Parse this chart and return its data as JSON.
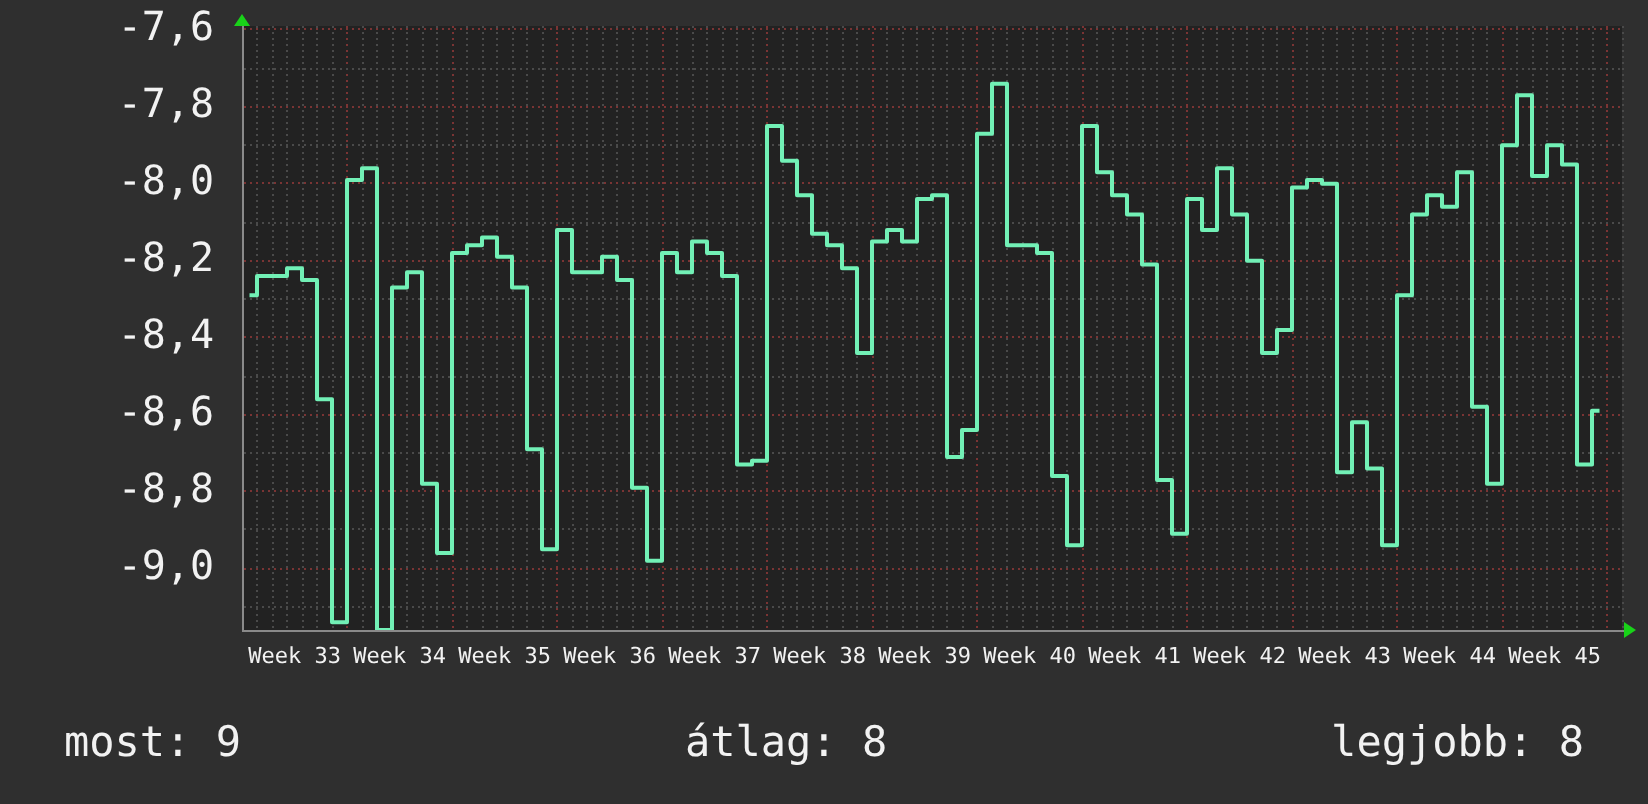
{
  "chart_data": {
    "type": "step",
    "annotations": [
      "most: 9",
      "átlag: 8",
      "legjobb: 8"
    ],
    "categories": [
      null,
      null,
      null,
      "Week 33",
      null,
      null,
      null,
      null,
      null,
      null,
      "Week 34",
      null,
      null,
      null,
      null,
      null,
      null,
      "Week 35",
      null,
      null,
      null,
      null,
      null,
      null,
      "Week 36",
      null,
      null,
      null,
      null,
      null,
      null,
      "Week 37",
      null,
      null,
      null,
      null,
      null,
      null,
      "Week 38",
      null,
      null,
      null,
      null,
      null,
      null,
      "Week 39",
      null,
      null,
      null,
      null,
      null,
      null,
      "Week 40",
      null,
      null,
      null,
      null,
      null,
      null,
      "Week 41",
      null,
      null,
      null,
      null,
      null,
      null,
      "Week 42",
      null,
      null,
      null,
      null,
      null,
      null,
      "Week 43",
      null,
      null,
      null,
      null,
      null,
      null,
      "Week 44",
      null,
      null,
      null,
      null,
      null,
      null,
      "Week 45",
      null,
      null,
      null,
      null
    ],
    "series": [
      {
        "color": "#72f0b6",
        "values": [
          -8.29,
          -8.24,
          -8.24,
          -8.22,
          -8.25,
          -8.56,
          -9.14,
          -7.99,
          -7.96,
          -9.16,
          -8.27,
          -8.23,
          -8.78,
          -8.96,
          -8.18,
          -8.16,
          -8.14,
          -8.19,
          -8.27,
          -8.69,
          -8.95,
          -8.12,
          -8.23,
          -8.23,
          -8.19,
          -8.25,
          -8.79,
          -8.98,
          -8.18,
          -8.23,
          -8.15,
          -8.18,
          -8.24,
          -8.73,
          -8.72,
          -7.85,
          -7.94,
          -8.03,
          -8.13,
          -8.16,
          -8.22,
          -8.44,
          -8.15,
          -8.12,
          -8.15,
          -8.04,
          -8.03,
          -8.71,
          -8.64,
          -7.87,
          -7.74,
          -8.16,
          -8.16,
          -8.18,
          -8.76,
          -8.94,
          -7.85,
          -7.97,
          -8.03,
          -8.08,
          -8.21,
          -8.77,
          -8.91,
          -8.04,
          -8.12,
          -7.96,
          -8.08,
          -8.2,
          -8.44,
          -8.38,
          -8.01,
          -7.99,
          -8,
          -8.75,
          -8.62,
          -8.74,
          -8.94,
          -8.29,
          -8.08,
          -8.03,
          -8.06,
          -7.97,
          -8.58,
          -8.78,
          -7.9,
          -7.77,
          -7.98,
          -7.9,
          -7.95,
          -8.73,
          -8.59,
          null
        ]
      }
    ],
    "ylim": [
      -9.16,
      -7.59
    ],
    "yticks": [
      {
        "value": -7.6,
        "label": "-7,6"
      },
      {
        "value": -7.7,
        "label": null
      },
      {
        "value": -7.8,
        "label": "-7,8"
      },
      {
        "value": -7.9,
        "label": null
      },
      {
        "value": -8.0,
        "label": "-8,0"
      },
      {
        "value": -8.1,
        "label": null
      },
      {
        "value": -8.2,
        "label": "-8,2"
      },
      {
        "value": -8.3,
        "label": null
      },
      {
        "value": -8.4,
        "label": "-8,4"
      },
      {
        "value": -8.5,
        "label": null
      },
      {
        "value": -8.6,
        "label": "-8,6"
      },
      {
        "value": -8.7,
        "label": null
      },
      {
        "value": -8.8,
        "label": "-8,8"
      },
      {
        "value": -8.9,
        "label": null
      },
      {
        "value": -9.0,
        "label": "-9,0"
      },
      {
        "value": -9.1,
        "label": null
      }
    ],
    "grid": true,
    "legend": false,
    "marker": "none",
    "line_style": "solid"
  }
}
